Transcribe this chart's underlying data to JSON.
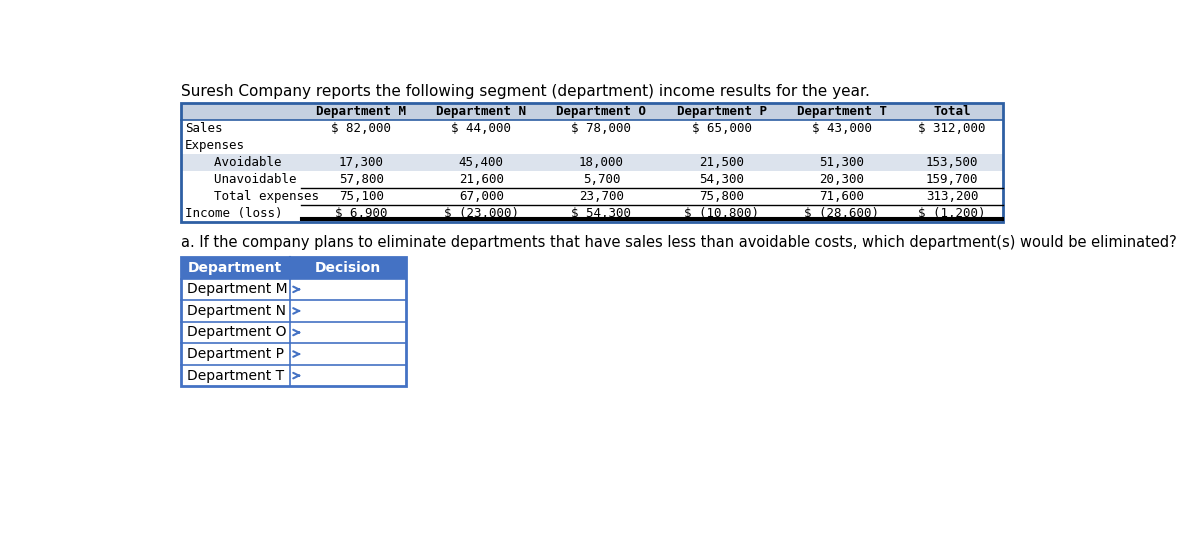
{
  "title": "Suresh Company reports the following segment (department) income results for the year.",
  "main_table": {
    "header_row": [
      "",
      "Department M",
      "Department N",
      "Department O",
      "Department P",
      "Department T",
      "Total"
    ],
    "rows": [
      [
        "Sales",
        "$ 82,000",
        "$ 44,000",
        "$ 78,000",
        "$ 65,000",
        "$ 43,000",
        "$ 312,000"
      ],
      [
        "Expenses",
        "",
        "",
        "",
        "",
        "",
        ""
      ],
      [
        "  Avoidable",
        "17,300",
        "45,400",
        "18,000",
        "21,500",
        "51,300",
        "153,500"
      ],
      [
        "  Unavoidable",
        "57,800",
        "21,600",
        "5,700",
        "54,300",
        "20,300",
        "159,700"
      ],
      [
        "  Total expenses",
        "75,100",
        "67,000",
        "23,700",
        "75,800",
        "71,600",
        "313,200"
      ],
      [
        "Income (loss)",
        "$ 6,900",
        "$ (23,000)",
        "$ 54,300",
        "$ (10,800)",
        "$ (28,600)",
        "$ (1,200)"
      ]
    ],
    "row_shading": [
      false,
      false,
      true,
      false,
      false,
      false
    ]
  },
  "question_a": "a. If the company plans to eliminate departments that have sales less than avoidable costs, which department(s) would be eliminated?",
  "decision_table": {
    "headers": [
      "Department",
      "Decision"
    ],
    "rows": [
      "Department M",
      "Department N",
      "Department O",
      "Department P",
      "Department T"
    ]
  },
  "colors": {
    "header_bg": "#c5d0e0",
    "header_text": "#000000",
    "row_bg": "#ffffff",
    "shaded_row_bg": "#dce3ed",
    "border": "#4472c4",
    "text": "#000000",
    "outer_border": "#2e5fa3",
    "decision_header_bg": "#4472c4",
    "decision_header_text": "#ffffff",
    "decision_border": "#4472c4"
  },
  "main_table_font_size": 9,
  "title_font_size": 11,
  "question_font_size": 10.5
}
